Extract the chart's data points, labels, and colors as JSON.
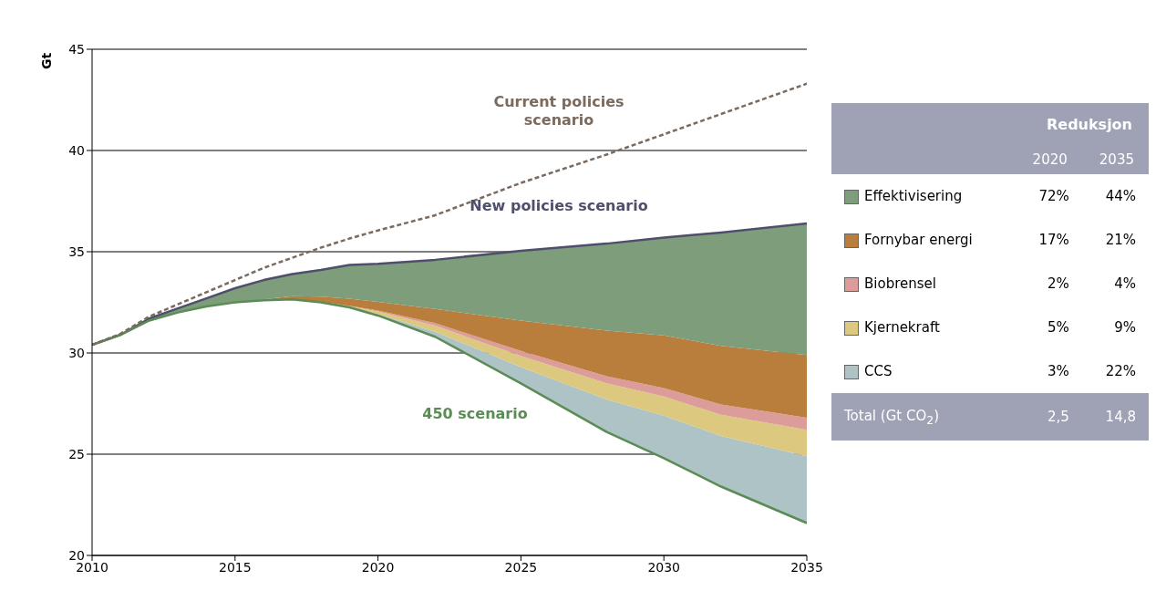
{
  "chart_data": [
    {
      "type": "area",
      "ylabel": "Gt",
      "x": [
        2010,
        2011,
        2012,
        2013,
        2014,
        2015,
        2016,
        2017,
        2018,
        2019,
        2020,
        2022,
        2025,
        2028,
        2030,
        2032,
        2035
      ],
      "xlim": [
        2010,
        2035
      ],
      "xticks": [
        2010,
        2015,
        2020,
        2025,
        2030,
        2035
      ],
      "ylim": [
        20,
        45
      ],
      "yticks": [
        20,
        25,
        30,
        35,
        40,
        45
      ],
      "grid": "y",
      "series": [
        {
          "name": "450 scenario",
          "type": "line",
          "color": "#5b8c55",
          "values": [
            30.4,
            30.9,
            31.6,
            32.0,
            32.3,
            32.5,
            32.6,
            32.65,
            32.5,
            32.25,
            31.85,
            30.8,
            28.5,
            26.1,
            24.8,
            23.4,
            21.6
          ]
        },
        {
          "type": "area",
          "color": "#aec3c6",
          "values": [
            null,
            null,
            null,
            null,
            null,
            null,
            null,
            null,
            null,
            32.25,
            31.93,
            31.05,
            29.3,
            27.7,
            26.9,
            25.9,
            24.9
          ]
        },
        {
          "type": "area",
          "color": "#dcc87e",
          "values": [
            null,
            null,
            null,
            null,
            null,
            null,
            null,
            32.65,
            32.53,
            32.31,
            32.05,
            31.35,
            29.85,
            28.5,
            27.85,
            26.95,
            26.2
          ]
        },
        {
          "type": "area",
          "color": "#db9c9a",
          "values": [
            null,
            null,
            null,
            null,
            null,
            null,
            null,
            null,
            32.53,
            32.33,
            32.1,
            31.47,
            30.1,
            28.85,
            28.27,
            27.45,
            26.8
          ]
        },
        {
          "type": "area",
          "color": "#b97d3c",
          "values": [
            null,
            null,
            null,
            null,
            null,
            32.5,
            32.65,
            32.8,
            32.78,
            32.68,
            32.52,
            32.17,
            31.6,
            31.1,
            30.87,
            30.35,
            29.9
          ]
        },
        {
          "name": "New policies scenario",
          "type": "area",
          "color": "#7d9d7b",
          "values": [
            30.4,
            30.9,
            31.7,
            32.2,
            32.7,
            33.2,
            33.6,
            33.9,
            34.1,
            34.35,
            34.4,
            34.6,
            35.05,
            35.4,
            35.7,
            35.95,
            36.4
          ]
        },
        {
          "name": "Current policies scenario",
          "type": "line",
          "line_style": "dashed",
          "color": "#7b6a5e",
          "values": [
            30.4,
            30.95,
            31.8,
            32.4,
            33.0,
            33.6,
            34.2,
            34.7,
            35.2,
            35.65,
            36.05,
            36.8,
            38.4,
            39.8,
            40.8,
            41.8,
            43.3
          ]
        }
      ]
    },
    {
      "type": "other",
      "title": "Reduksjon",
      "categories": [
        "2020",
        "2035"
      ],
      "annotations": [
        "Effektivisering",
        "72%",
        "44%",
        "Fornybar energi",
        "17%",
        "21%",
        "Biobrensel",
        "2%",
        "4%",
        "Kjernekraft",
        "5%",
        "9%",
        "CCS",
        "3%",
        "22%",
        "Total (Gt CO$_{2}$)",
        "2,5",
        "14,8"
      ]
    }
  ]
}
